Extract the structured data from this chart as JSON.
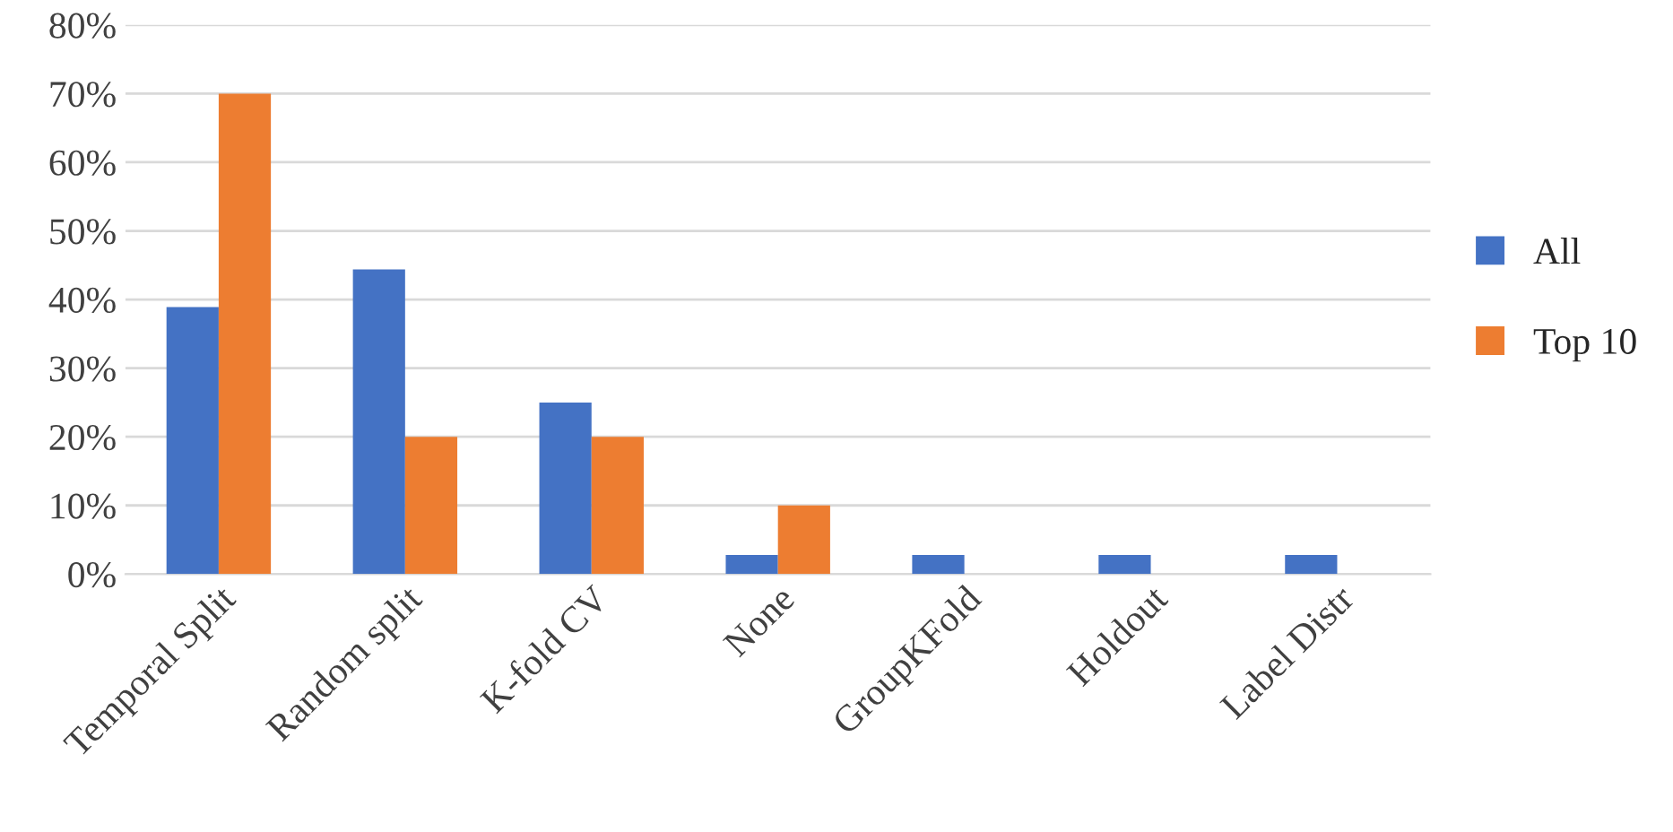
{
  "chart_data": {
    "type": "bar",
    "categories": [
      "Temporal Split",
      "Random split",
      "K-fold CV",
      "None",
      "GroupKFold",
      "Holdout",
      "Label Distr"
    ],
    "series": [
      {
        "name": "All",
        "color": "#4472c4",
        "values": [
          38.9,
          44.4,
          25,
          2.8,
          2.8,
          2.8,
          2.8
        ]
      },
      {
        "name": "Top 10",
        "color": "#ed7d31",
        "values": [
          70,
          20,
          20,
          10,
          null,
          null,
          null
        ]
      }
    ],
    "ylim": [
      0,
      80
    ],
    "yticks": [
      {
        "value": 0,
        "label": "0%"
      },
      {
        "value": 10,
        "label": "10%"
      },
      {
        "value": 20,
        "label": "20%"
      },
      {
        "value": 30,
        "label": "30%"
      },
      {
        "value": 40,
        "label": "40%"
      },
      {
        "value": 50,
        "label": "50%"
      },
      {
        "value": 60,
        "label": "60%"
      },
      {
        "value": 70,
        "label": "70%"
      },
      {
        "value": 80,
        "label": "80%"
      }
    ],
    "grid": "y",
    "legend": "right"
  }
}
